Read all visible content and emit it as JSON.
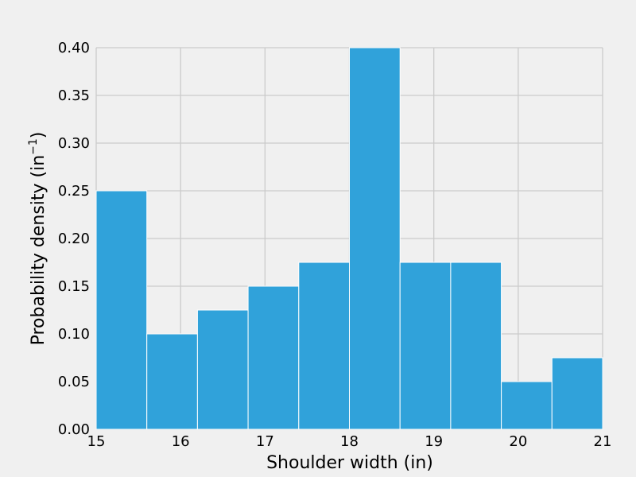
{
  "chart_data": {
    "type": "bar",
    "xlabel": "Shoulder width (in)",
    "ylabel": "Probability density (in",
    "ylabel_exp": "−1",
    "ylabel_close": ")",
    "xlim": [
      15,
      21
    ],
    "ylim": [
      0,
      0.4
    ],
    "grid": true,
    "bar_color": "#30a2da",
    "background": "#f0f0f0",
    "grid_color": "#cbcbcb",
    "bins": [
      {
        "x0": 15.0,
        "x1": 15.6,
        "value": 0.25
      },
      {
        "x0": 15.6,
        "x1": 16.2,
        "value": 0.1
      },
      {
        "x0": 16.2,
        "x1": 16.8,
        "value": 0.125
      },
      {
        "x0": 16.8,
        "x1": 17.4,
        "value": 0.15
      },
      {
        "x0": 17.4,
        "x1": 18.0,
        "value": 0.175
      },
      {
        "x0": 18.0,
        "x1": 18.6,
        "value": 0.4
      },
      {
        "x0": 18.6,
        "x1": 19.2,
        "value": 0.175
      },
      {
        "x0": 19.2,
        "x1": 19.8,
        "value": 0.175
      },
      {
        "x0": 19.8,
        "x1": 20.4,
        "value": 0.05
      },
      {
        "x0": 20.4,
        "x1": 21.0,
        "value": 0.075
      }
    ],
    "x_ticks": [
      {
        "value": 15,
        "label": "15"
      },
      {
        "value": 16,
        "label": "16"
      },
      {
        "value": 17,
        "label": "17"
      },
      {
        "value": 18,
        "label": "18"
      },
      {
        "value": 19,
        "label": "19"
      },
      {
        "value": 20,
        "label": "20"
      },
      {
        "value": 21,
        "label": "21"
      }
    ],
    "y_ticks": [
      {
        "value": 0.0,
        "label": "0.00"
      },
      {
        "value": 0.05,
        "label": "0.05"
      },
      {
        "value": 0.1,
        "label": "0.10"
      },
      {
        "value": 0.15,
        "label": "0.15"
      },
      {
        "value": 0.2,
        "label": "0.20"
      },
      {
        "value": 0.25,
        "label": "0.25"
      },
      {
        "value": 0.3,
        "label": "0.30"
      },
      {
        "value": 0.35,
        "label": "0.35"
      },
      {
        "value": 0.4,
        "label": "0.40"
      }
    ]
  }
}
